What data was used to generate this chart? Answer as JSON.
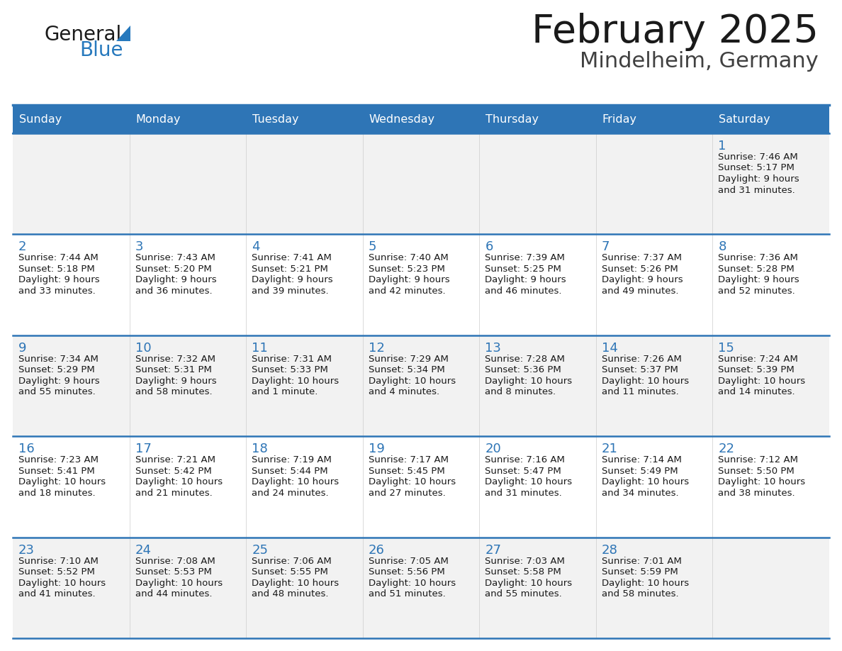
{
  "title": "February 2025",
  "subtitle": "Mindelheim, Germany",
  "header_bg": "#2E75B6",
  "header_text_color": "#FFFFFF",
  "cell_bg_odd": "#F2F2F2",
  "cell_bg_even": "#FFFFFF",
  "border_color": "#2E75B6",
  "sep_line_color": "#2E75B6",
  "day_headers": [
    "Sunday",
    "Monday",
    "Tuesday",
    "Wednesday",
    "Thursday",
    "Friday",
    "Saturday"
  ],
  "title_color": "#1a1a1a",
  "subtitle_color": "#404040",
  "day_number_color": "#2E75B6",
  "cell_text_color": "#1a1a1a",
  "logo_text1_color": "#1a1a1a",
  "logo_text2_color": "#2779BD",
  "logo_triangle_color": "#2779BD",
  "calendar": [
    [
      null,
      null,
      null,
      null,
      null,
      null,
      {
        "day": "1",
        "sunrise": "7:46 AM",
        "sunset": "5:17 PM",
        "daylight1": "9 hours",
        "daylight2": "and 31 minutes."
      }
    ],
    [
      {
        "day": "2",
        "sunrise": "7:44 AM",
        "sunset": "5:18 PM",
        "daylight1": "9 hours",
        "daylight2": "and 33 minutes."
      },
      {
        "day": "3",
        "sunrise": "7:43 AM",
        "sunset": "5:20 PM",
        "daylight1": "9 hours",
        "daylight2": "and 36 minutes."
      },
      {
        "day": "4",
        "sunrise": "7:41 AM",
        "sunset": "5:21 PM",
        "daylight1": "9 hours",
        "daylight2": "and 39 minutes."
      },
      {
        "day": "5",
        "sunrise": "7:40 AM",
        "sunset": "5:23 PM",
        "daylight1": "9 hours",
        "daylight2": "and 42 minutes."
      },
      {
        "day": "6",
        "sunrise": "7:39 AM",
        "sunset": "5:25 PM",
        "daylight1": "9 hours",
        "daylight2": "and 46 minutes."
      },
      {
        "day": "7",
        "sunrise": "7:37 AM",
        "sunset": "5:26 PM",
        "daylight1": "9 hours",
        "daylight2": "and 49 minutes."
      },
      {
        "day": "8",
        "sunrise": "7:36 AM",
        "sunset": "5:28 PM",
        "daylight1": "9 hours",
        "daylight2": "and 52 minutes."
      }
    ],
    [
      {
        "day": "9",
        "sunrise": "7:34 AM",
        "sunset": "5:29 PM",
        "daylight1": "9 hours",
        "daylight2": "and 55 minutes."
      },
      {
        "day": "10",
        "sunrise": "7:32 AM",
        "sunset": "5:31 PM",
        "daylight1": "9 hours",
        "daylight2": "and 58 minutes."
      },
      {
        "day": "11",
        "sunrise": "7:31 AM",
        "sunset": "5:33 PM",
        "daylight1": "10 hours",
        "daylight2": "and 1 minute."
      },
      {
        "day": "12",
        "sunrise": "7:29 AM",
        "sunset": "5:34 PM",
        "daylight1": "10 hours",
        "daylight2": "and 4 minutes."
      },
      {
        "day": "13",
        "sunrise": "7:28 AM",
        "sunset": "5:36 PM",
        "daylight1": "10 hours",
        "daylight2": "and 8 minutes."
      },
      {
        "day": "14",
        "sunrise": "7:26 AM",
        "sunset": "5:37 PM",
        "daylight1": "10 hours",
        "daylight2": "and 11 minutes."
      },
      {
        "day": "15",
        "sunrise": "7:24 AM",
        "sunset": "5:39 PM",
        "daylight1": "10 hours",
        "daylight2": "and 14 minutes."
      }
    ],
    [
      {
        "day": "16",
        "sunrise": "7:23 AM",
        "sunset": "5:41 PM",
        "daylight1": "10 hours",
        "daylight2": "and 18 minutes."
      },
      {
        "day": "17",
        "sunrise": "7:21 AM",
        "sunset": "5:42 PM",
        "daylight1": "10 hours",
        "daylight2": "and 21 minutes."
      },
      {
        "day": "18",
        "sunrise": "7:19 AM",
        "sunset": "5:44 PM",
        "daylight1": "10 hours",
        "daylight2": "and 24 minutes."
      },
      {
        "day": "19",
        "sunrise": "7:17 AM",
        "sunset": "5:45 PM",
        "daylight1": "10 hours",
        "daylight2": "and 27 minutes."
      },
      {
        "day": "20",
        "sunrise": "7:16 AM",
        "sunset": "5:47 PM",
        "daylight1": "10 hours",
        "daylight2": "and 31 minutes."
      },
      {
        "day": "21",
        "sunrise": "7:14 AM",
        "sunset": "5:49 PM",
        "daylight1": "10 hours",
        "daylight2": "and 34 minutes."
      },
      {
        "day": "22",
        "sunrise": "7:12 AM",
        "sunset": "5:50 PM",
        "daylight1": "10 hours",
        "daylight2": "and 38 minutes."
      }
    ],
    [
      {
        "day": "23",
        "sunrise": "7:10 AM",
        "sunset": "5:52 PM",
        "daylight1": "10 hours",
        "daylight2": "and 41 minutes."
      },
      {
        "day": "24",
        "sunrise": "7:08 AM",
        "sunset": "5:53 PM",
        "daylight1": "10 hours",
        "daylight2": "and 44 minutes."
      },
      {
        "day": "25",
        "sunrise": "7:06 AM",
        "sunset": "5:55 PM",
        "daylight1": "10 hours",
        "daylight2": "and 48 minutes."
      },
      {
        "day": "26",
        "sunrise": "7:05 AM",
        "sunset": "5:56 PM",
        "daylight1": "10 hours",
        "daylight2": "and 51 minutes."
      },
      {
        "day": "27",
        "sunrise": "7:03 AM",
        "sunset": "5:58 PM",
        "daylight1": "10 hours",
        "daylight2": "and 55 minutes."
      },
      {
        "day": "28",
        "sunrise": "7:01 AM",
        "sunset": "5:59 PM",
        "daylight1": "10 hours",
        "daylight2": "and 58 minutes."
      },
      null
    ]
  ]
}
